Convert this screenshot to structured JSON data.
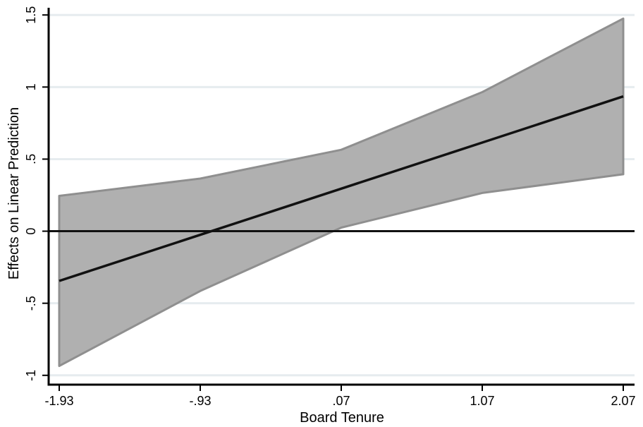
{
  "chart_data": {
    "type": "line",
    "xlabel": "Board Tenure",
    "ylabel": "Effects on Linear Prediction",
    "x": [
      -1.93,
      -0.93,
      0.07,
      1.07,
      2.07
    ],
    "x_tick_labels": [
      "-1.93",
      "-.93",
      ".07",
      "1.07",
      "2.07"
    ],
    "y_ticks": [
      -1,
      -0.5,
      0,
      0.5,
      1,
      1.5
    ],
    "y_tick_labels": [
      "-1",
      "-.5",
      "0",
      ".5",
      "1",
      "1.5"
    ],
    "xlim": [
      -1.93,
      2.07
    ],
    "ylim": [
      -1.05,
      1.55
    ],
    "series": [
      {
        "values": [
          -0.345,
          -0.025,
          0.295,
          0.615,
          0.935
        ]
      }
    ],
    "confidence_band": {
      "lower": [
        -0.935,
        -0.415,
        0.025,
        0.265,
        0.395
      ],
      "upper": [
        0.245,
        0.365,
        0.565,
        0.965,
        1.475
      ]
    },
    "reference_line_y": 0,
    "grid": "horizontal",
    "colors": {
      "band_fill": "#b0b0b0",
      "band_edge": "#8f8f8f",
      "line": "#111111",
      "grid": "#e6ecef",
      "axis": "#000000"
    }
  }
}
